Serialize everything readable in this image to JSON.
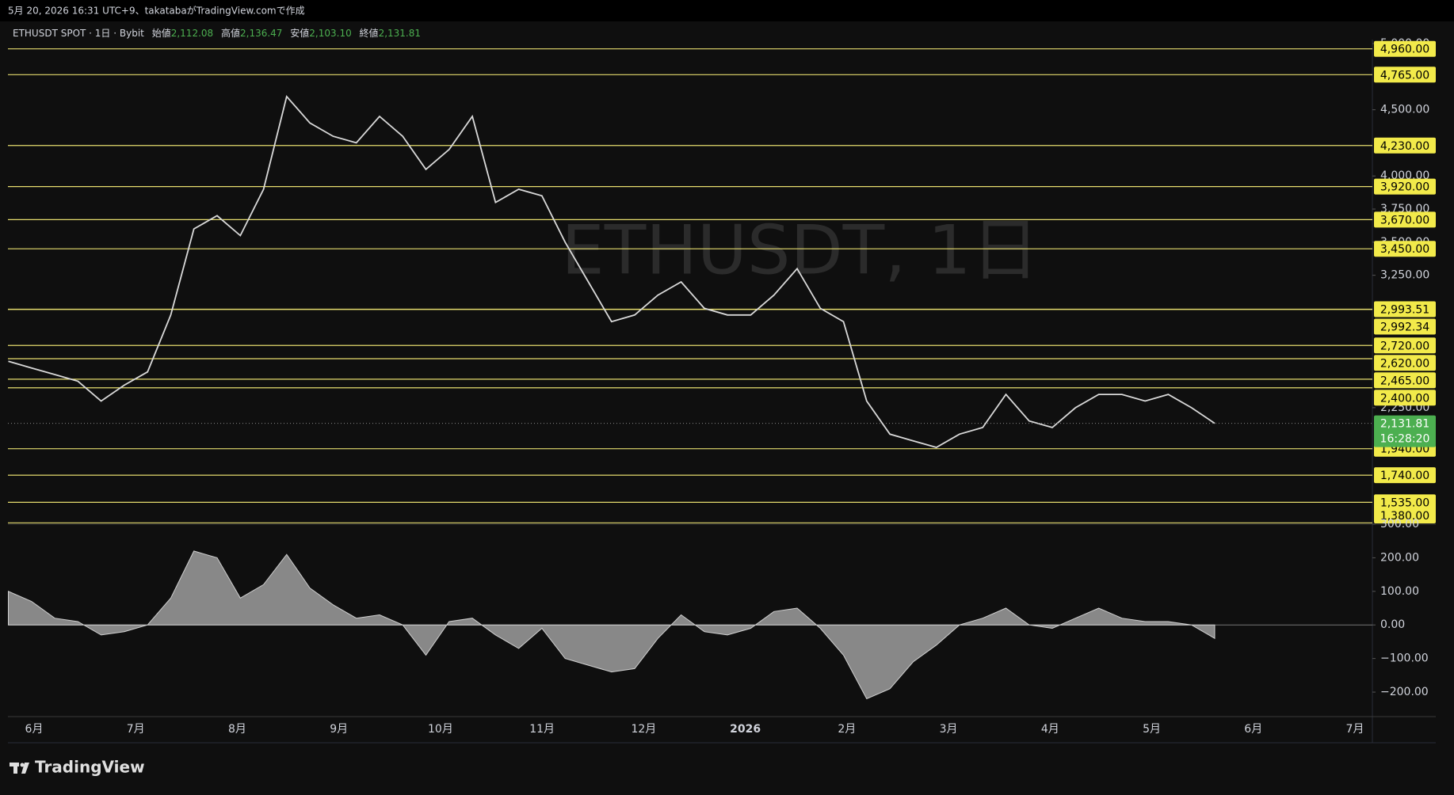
{
  "header": {
    "caption": "5月 20, 2026 16:31 UTC+9、takatabaがTradingView.comで作成"
  },
  "legend": {
    "symbol": "ETHUSDT SPOT · 1日 · Bybit",
    "open_label": "始値",
    "open": "2,112.08",
    "high_label": "高値",
    "high": "2,136.47",
    "low_label": "安値",
    "low": "2,103.10",
    "close_label": "終値",
    "close": "2,131.81"
  },
  "watermark": "ETHUSDT, 1日",
  "footer": {
    "brand": "TradingView"
  },
  "chart_data": [
    {
      "type": "line",
      "color": "#d9d9d9",
      "values": [
        2600,
        2550,
        2500,
        2450,
        2300,
        2420,
        2520,
        2950,
        3600,
        3700,
        3550,
        3900,
        4600,
        4400,
        4300,
        4250,
        4450,
        4300,
        4050,
        4200,
        4450,
        3800,
        3900,
        3850,
        3500,
        3200,
        2900,
        2950,
        3100,
        3200,
        3000,
        2950,
        2950,
        3100,
        3300,
        3000,
        2900,
        2300,
        2050,
        2000,
        1950,
        2050,
        2100,
        2350,
        2150,
        2100,
        2250,
        2350,
        2350,
        2300,
        2350,
        2250,
        2131.81
      ],
      "x_labels": [
        "6月",
        "7月",
        "8月",
        "9月",
        "10月",
        "11月",
        "12月",
        "2026",
        "2月",
        "3月",
        "4月",
        "5月",
        "6月",
        "7月"
      ],
      "ylim": [
        1370,
        5030
      ],
      "yticks": [
        {
          "value": 5000,
          "label": "5,000.00"
        },
        {
          "value": 4500,
          "label": "4,500.00"
        },
        {
          "value": 4000,
          "label": "4,000.00"
        },
        {
          "value": 3750,
          "label": "3,750.00"
        },
        {
          "value": 3500,
          "label": "3,500.00"
        },
        {
          "value": 3250,
          "label": "3,250.00"
        },
        {
          "value": 2250,
          "label": "2,250.00"
        }
      ],
      "level_color": "#e6dc6e",
      "levels": [
        {
          "value": 4960,
          "label": "4,960.00"
        },
        {
          "value": 4765,
          "label": "4,765.00"
        },
        {
          "value": 4230,
          "label": "4,230.00"
        },
        {
          "value": 3920,
          "label": "3,920.00"
        },
        {
          "value": 3670,
          "label": "3,670.00"
        },
        {
          "value": 3450,
          "label": "3,450.00"
        },
        {
          "value": 2993.51,
          "label": "2,993.51"
        },
        {
          "value": 2992.34,
          "label": "2,992.34"
        },
        {
          "value": 2720,
          "label": "2,720.00"
        },
        {
          "value": 2620,
          "label": "2,620.00"
        },
        {
          "value": 2465,
          "label": "2,465.00"
        },
        {
          "value": 2400,
          "label": "2,400.00"
        },
        {
          "value": 1940,
          "label": "1,940.00"
        },
        {
          "value": 1740,
          "label": "1,740.00"
        },
        {
          "value": 1535,
          "label": "1,535.00"
        },
        {
          "value": 1380,
          "label": "1,380.00"
        }
      ],
      "last_price": {
        "value": 2131.81,
        "label": "2,131.81",
        "countdown": "16:28:20",
        "color": "#4caf50"
      }
    },
    {
      "type": "area",
      "color": "#9e9e9e",
      "values": [
        100,
        70,
        20,
        10,
        -30,
        -20,
        0,
        80,
        220,
        200,
        80,
        120,
        210,
        110,
        60,
        20,
        30,
        0,
        -90,
        10,
        20,
        -30,
        -70,
        -10,
        -100,
        -120,
        -140,
        -130,
        -40,
        30,
        -20,
        -30,
        -10,
        40,
        50,
        -10,
        -90,
        -220,
        -190,
        -110,
        -60,
        0,
        20,
        50,
        0,
        -10,
        20,
        50,
        20,
        10,
        10,
        0,
        -40
      ],
      "ylim": [
        -273,
        300
      ],
      "yticks": [
        {
          "value": 300,
          "label": "300.00"
        },
        {
          "value": 200,
          "label": "200.00"
        },
        {
          "value": 100,
          "label": "100.00"
        },
        {
          "value": 0,
          "label": "0.00"
        },
        {
          "value": -100,
          "label": "−100.00"
        },
        {
          "value": -200,
          "label": "−200.00"
        }
      ]
    }
  ]
}
